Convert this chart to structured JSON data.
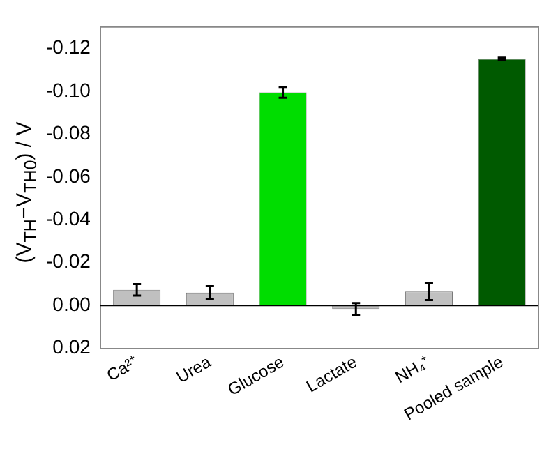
{
  "chart_data": {
    "type": "bar",
    "ylabel": "(V$_{TH}$−V$_{TH0}$) / V",
    "categories": [
      "Ca²⁺",
      "Urea",
      "Glucose",
      "Lactate",
      "NH₄⁺",
      "Pooled sample"
    ],
    "values": [
      -0.0073,
      -0.006,
      -0.0995,
      0.0016,
      -0.0065,
      -0.1151
    ],
    "errors": [
      0.0027,
      0.003,
      0.0025,
      0.0027,
      0.004,
      0.0006
    ],
    "colors": [
      "#c0c0c0",
      "#c0c0c0",
      "#00dd00",
      "#c0c0c0",
      "#c0c0c0",
      "#005a00"
    ],
    "ylim": [
      0.02,
      -0.13
    ],
    "yticks": [
      {
        "value": 0.02,
        "label": "0.02"
      },
      {
        "value": 0,
        "label": "0.00"
      },
      {
        "value": -0.02,
        "label": "-0.02"
      },
      {
        "value": -0.04,
        "label": "-0.04"
      },
      {
        "value": -0.06,
        "label": "-0.06"
      },
      {
        "value": -0.08,
        "label": "-0.08"
      },
      {
        "value": -0.1,
        "label": "-0.10"
      },
      {
        "value": -0.12,
        "label": "-0.12"
      }
    ],
    "ref_lines": [
      {
        "axis": "y",
        "value": 0,
        "color": "#000000"
      }
    ],
    "grid": false,
    "legend": false
  }
}
